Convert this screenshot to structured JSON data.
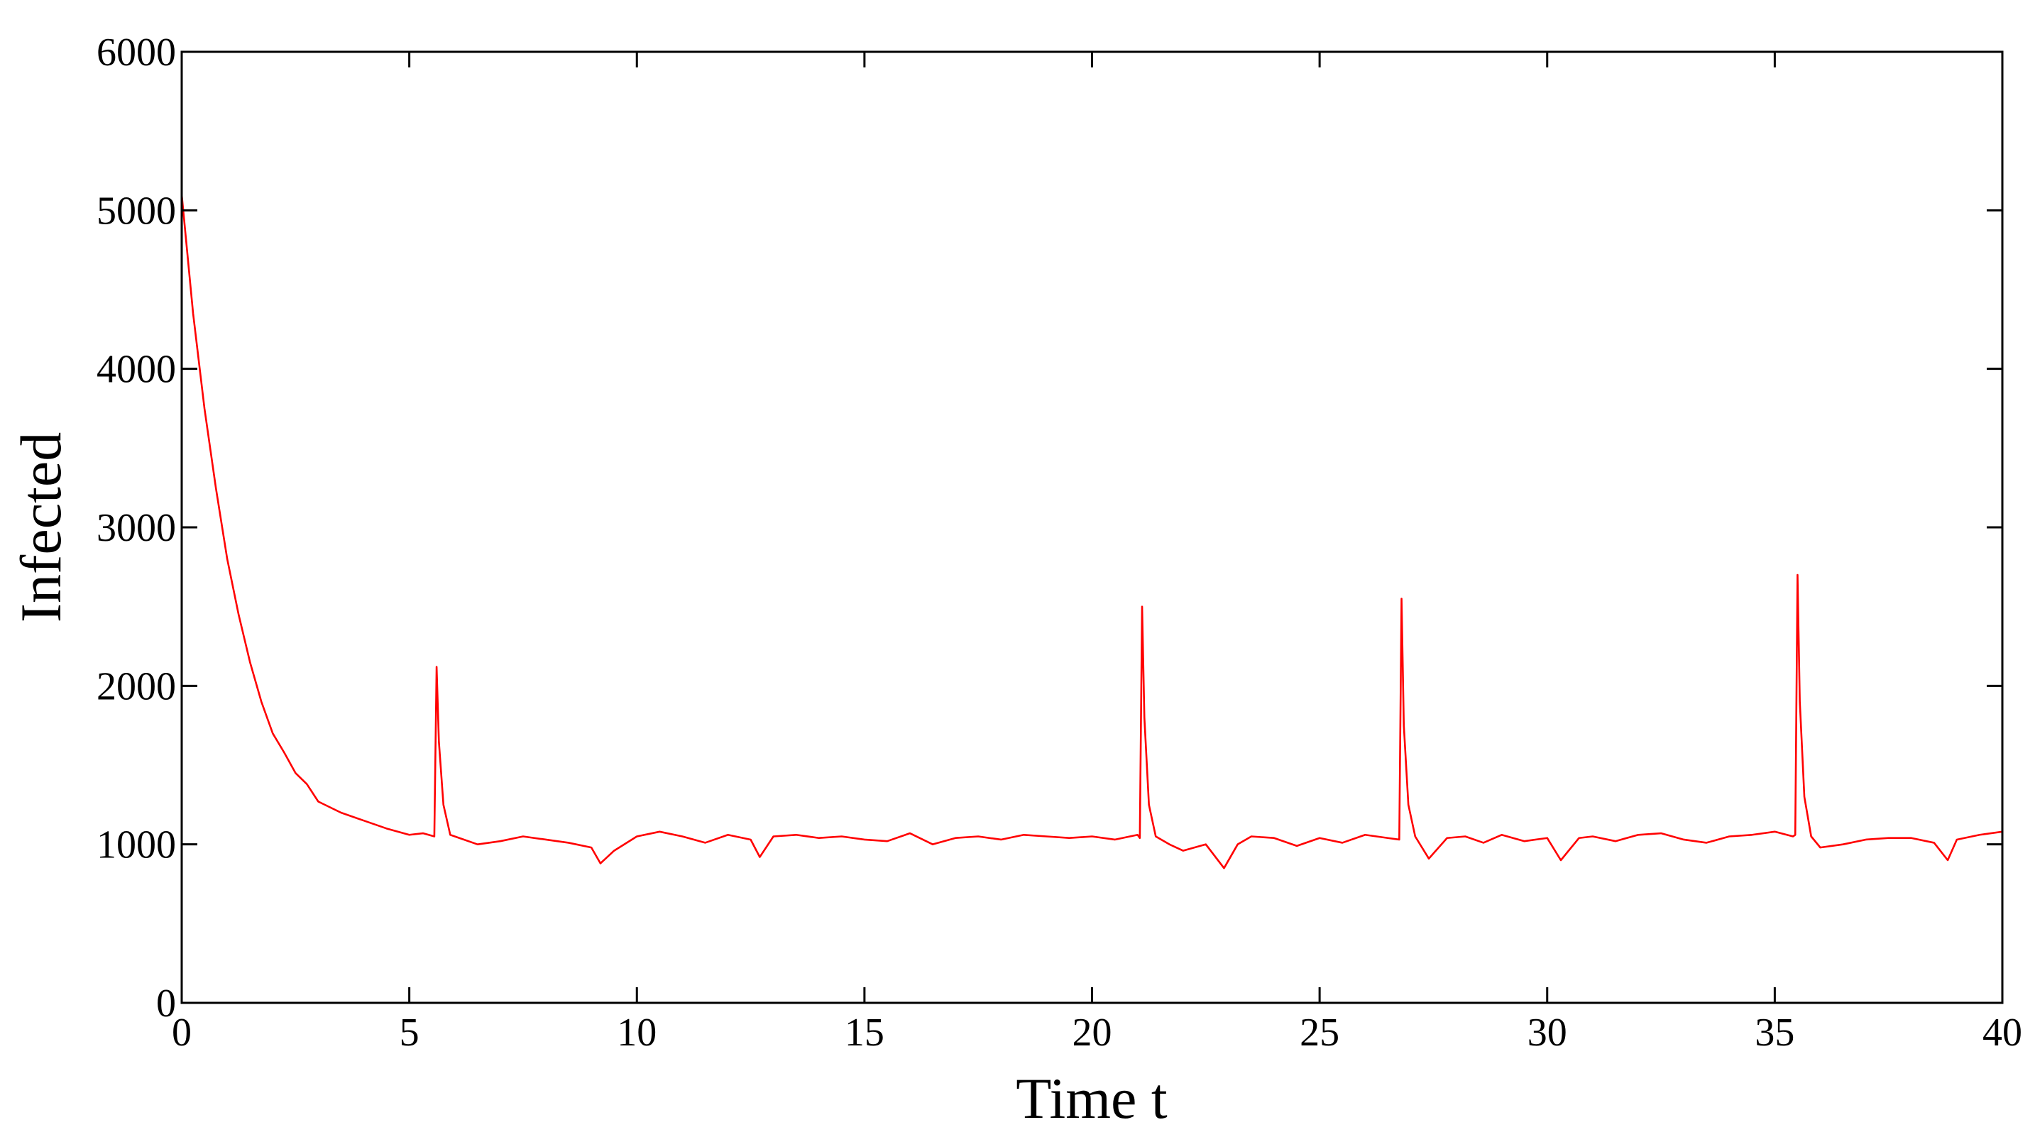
{
  "chart_data": {
    "type": "line",
    "x_label": "Time t",
    "y_label": "Infected",
    "x": [
      0,
      0.1,
      0.25,
      0.5,
      0.75,
      1,
      1.25,
      1.5,
      1.75,
      2,
      2.25,
      2.5,
      2.75,
      3,
      3.5,
      4,
      4.5,
      5,
      5.3,
      5.55,
      5.6,
      5.65,
      5.75,
      5.9,
      6.1,
      6.5,
      7,
      7.5,
      8,
      8.5,
      9,
      9.2,
      9.5,
      10,
      10.5,
      11,
      11.5,
      12,
      12.5,
      12.7,
      13,
      13.5,
      14,
      14.5,
      15,
      15.5,
      16,
      16.5,
      17,
      17.5,
      18,
      18.5,
      19,
      19.5,
      20,
      20.5,
      21,
      21.05,
      21.1,
      21.15,
      21.25,
      21.4,
      21.7,
      22,
      22.5,
      22.9,
      23.2,
      23.5,
      24,
      24.5,
      25,
      25.5,
      26,
      26.5,
      26.75,
      26.8,
      26.85,
      26.95,
      27.1,
      27.4,
      27.8,
      28.2,
      28.6,
      29,
      29.5,
      30,
      30.3,
      30.7,
      31,
      31.5,
      32,
      32.5,
      33,
      33.5,
      34,
      34.5,
      35,
      35.4,
      35.45,
      35.5,
      35.55,
      35.65,
      35.8,
      36,
      36.5,
      37,
      37.5,
      38,
      38.5,
      38.8,
      39,
      39.5,
      40
    ],
    "values": [
      5100,
      4800,
      4350,
      3750,
      3250,
      2800,
      2450,
      2150,
      1900,
      1700,
      1580,
      1450,
      1380,
      1270,
      1200,
      1150,
      1100,
      1060,
      1070,
      1050,
      2120,
      1650,
      1250,
      1060,
      1040,
      1000,
      1020,
      1050,
      1030,
      1010,
      980,
      880,
      960,
      1050,
      1080,
      1050,
      1010,
      1060,
      1030,
      920,
      1050,
      1060,
      1040,
      1050,
      1030,
      1020,
      1070,
      1000,
      1040,
      1050,
      1030,
      1060,
      1050,
      1040,
      1050,
      1030,
      1060,
      1040,
      2500,
      1800,
      1250,
      1050,
      1000,
      960,
      1000,
      850,
      1000,
      1050,
      1040,
      990,
      1040,
      1010,
      1060,
      1040,
      1030,
      2550,
      1750,
      1250,
      1050,
      910,
      1040,
      1050,
      1010,
      1060,
      1020,
      1040,
      900,
      1040,
      1050,
      1020,
      1060,
      1070,
      1030,
      1010,
      1050,
      1060,
      1080,
      1050,
      1060,
      2700,
      1900,
      1300,
      1050,
      980,
      1000,
      1030,
      1040,
      1040,
      1010,
      900,
      1030,
      1060,
      1080
    ],
    "color": "#ff0000",
    "xlim": [
      0,
      40
    ],
    "xticks": [
      0,
      5,
      10,
      15,
      20,
      25,
      30,
      35,
      40
    ],
    "ylim": [
      0,
      6000
    ],
    "yticks": [
      0,
      1000,
      2000,
      3000,
      4000,
      5000,
      6000
    ]
  }
}
